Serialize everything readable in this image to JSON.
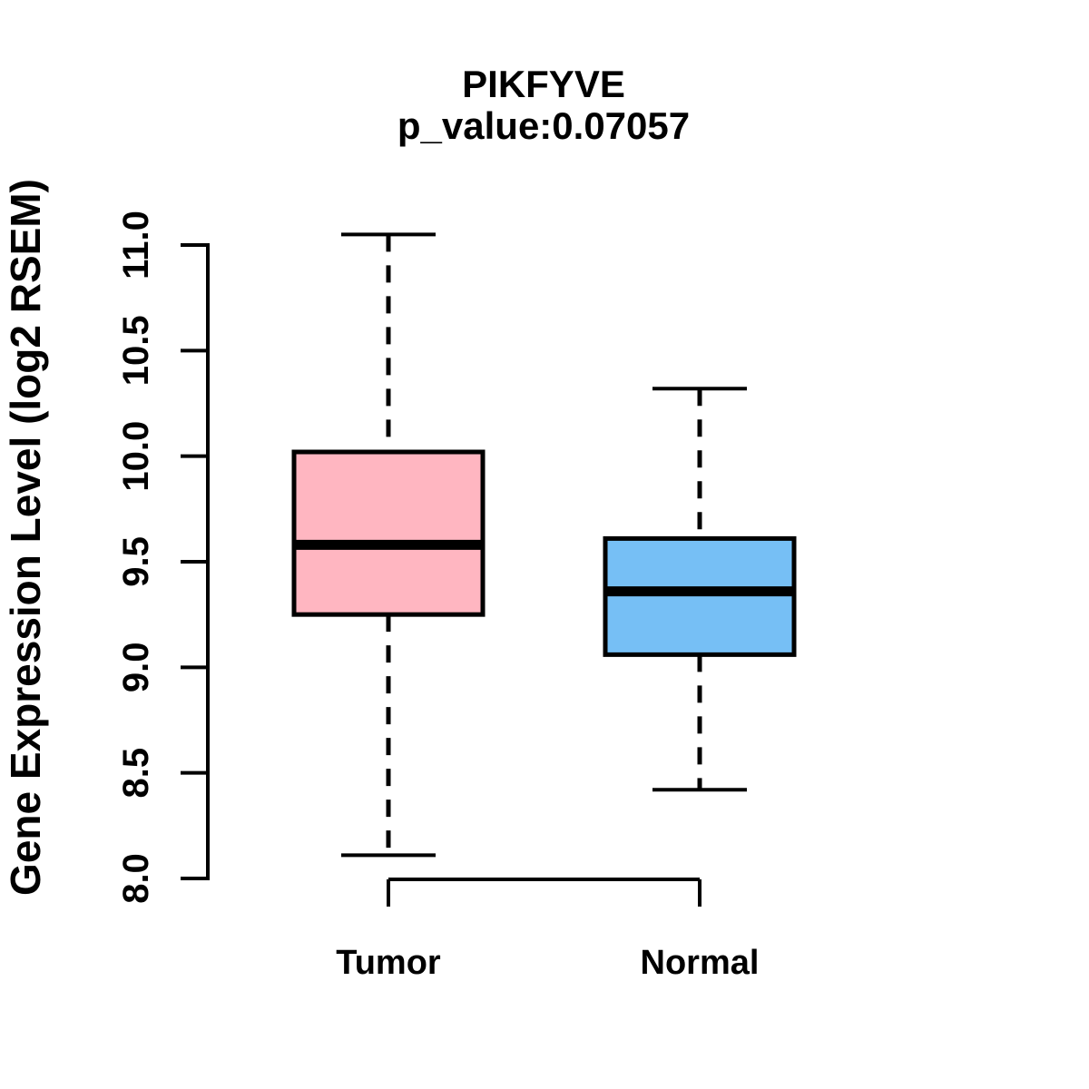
{
  "figure": {
    "title": "PIKFYVE",
    "subtitle": "p_value:0.07057",
    "ylabel": "Gene Expression Level (log2 RSEM)"
  },
  "chart_data": {
    "type": "boxplot",
    "title": "PIKFYVE",
    "subtitle": "p_value:0.07057",
    "p_value": 0.07057,
    "gene": "PIKFYVE",
    "ylabel": "Gene Expression Level (log2 RSEM)",
    "xlabel": "",
    "ylim": [
      8.0,
      11.0
    ],
    "yticks": [
      8.0,
      8.5,
      9.0,
      9.5,
      10.0,
      10.5,
      11.0
    ],
    "ytick_labels": [
      "8.0",
      "8.5",
      "9.0",
      "9.5",
      "10.0",
      "10.5",
      "11.0"
    ],
    "categories": [
      "Tumor",
      "Normal"
    ],
    "grid": false,
    "legend": "none",
    "whisker_style": "dashed",
    "series": [
      {
        "name": "Tumor",
        "color": "#FFB6C1",
        "whisker_low": 8.11,
        "q1": 9.25,
        "median": 9.58,
        "q3": 10.02,
        "whisker_high": 11.05
      },
      {
        "name": "Normal",
        "color": "#76BFF5",
        "whisker_low": 8.42,
        "q1": 9.06,
        "median": 9.36,
        "q3": 9.61,
        "whisker_high": 10.32
      }
    ]
  },
  "colors": {
    "tumor_fill": "#FFB6C1",
    "normal_fill": "#76BFF5",
    "stroke": "#000000",
    "background": "#ffffff"
  }
}
